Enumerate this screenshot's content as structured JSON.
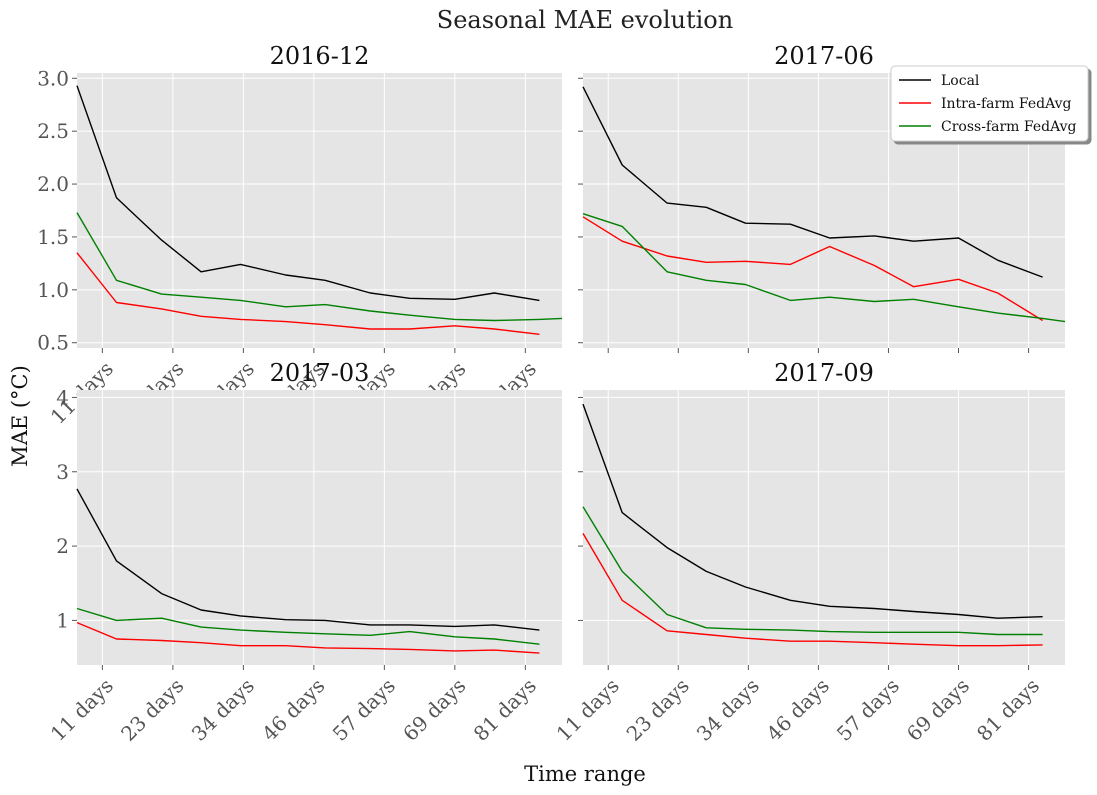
{
  "figure": {
    "title": "Seasonal MAE evolution",
    "xlabel": "Time range",
    "ylabel": "MAE (°C)"
  },
  "legend": {
    "placement": "upper-right of top-right panel",
    "entries": [
      {
        "name": "Local",
        "color": "#000000"
      },
      {
        "name": "Intra-farm FedAvg",
        "color": "#ff0000"
      },
      {
        "name": "Cross-farm FedAvg",
        "color": "#008000"
      }
    ]
  },
  "chart_data": [
    {
      "type": "line",
      "title": "2016-12",
      "xlim": [
        1,
        87
      ],
      "ylim": [
        0.45,
        3.05
      ],
      "yticks": [
        0.5,
        1.0,
        1.5,
        2.0,
        2.5,
        3.0
      ],
      "ytick_labels": [
        "0.5",
        "1.0",
        "1.5",
        "2.0",
        "2.5",
        "3.0"
      ],
      "xticks": [
        5.5,
        18,
        30.5,
        43,
        55.5,
        68,
        80.5
      ],
      "xtick_labels": [
        "11 days",
        "23 days",
        "34 days",
        "46 days",
        "57 days",
        "69 days",
        "81 days"
      ],
      "grid": true,
      "x": [
        1,
        8,
        16,
        23,
        30,
        38,
        45,
        53,
        60,
        68,
        75,
        83,
        87
      ],
      "series": [
        {
          "name": "Local",
          "color": "#000000",
          "values": [
            2.93,
            1.87,
            1.47,
            1.17,
            1.24,
            1.14,
            1.09,
            0.97,
            0.92,
            0.91,
            0.97,
            0.9,
            null
          ]
        },
        {
          "name": "Intra-farm FedAvg",
          "color": "#ff0000",
          "values": [
            1.35,
            0.88,
            0.82,
            0.75,
            0.72,
            0.7,
            0.67,
            0.63,
            0.63,
            0.66,
            0.63,
            0.58,
            null
          ]
        },
        {
          "name": "Cross-farm FedAvg",
          "color": "#008000",
          "values": [
            1.73,
            1.09,
            0.96,
            0.93,
            0.9,
            0.84,
            0.86,
            0.8,
            0.76,
            0.72,
            0.71,
            0.72,
            0.73
          ]
        }
      ]
    },
    {
      "type": "line",
      "title": "2017-06",
      "xlim": [
        1,
        87
      ],
      "ylim": [
        0.45,
        3.05
      ],
      "yticks": [
        0.5,
        1.0,
        1.5,
        2.0,
        2.5,
        3.0
      ],
      "ytick_labels": [],
      "xticks": [
        5.5,
        18,
        30.5,
        43,
        55.5,
        68,
        80.5
      ],
      "xtick_labels": [],
      "grid": true,
      "x": [
        1,
        8,
        16,
        23,
        30,
        38,
        45,
        53,
        60,
        68,
        75,
        83,
        87
      ],
      "series": [
        {
          "name": "Local",
          "color": "#000000",
          "values": [
            2.92,
            2.18,
            1.82,
            1.78,
            1.63,
            1.62,
            1.49,
            1.51,
            1.46,
            1.49,
            1.28,
            1.12,
            null
          ]
        },
        {
          "name": "Intra-farm FedAvg",
          "color": "#ff0000",
          "values": [
            1.69,
            1.46,
            1.32,
            1.26,
            1.27,
            1.24,
            1.41,
            1.23,
            1.03,
            1.1,
            0.97,
            0.71,
            null
          ]
        },
        {
          "name": "Cross-farm FedAvg",
          "color": "#008000",
          "values": [
            1.72,
            1.6,
            1.17,
            1.09,
            1.05,
            0.9,
            0.93,
            0.89,
            0.91,
            0.84,
            0.78,
            0.73,
            0.7
          ]
        }
      ]
    },
    {
      "type": "line",
      "title": "2017-03",
      "xlim": [
        1,
        87
      ],
      "ylim": [
        0.4,
        4.1
      ],
      "yticks": [
        1,
        2,
        3,
        4
      ],
      "ytick_labels": [
        "1",
        "2",
        "3",
        "4"
      ],
      "xticks": [
        5.5,
        18,
        30.5,
        43,
        55.5,
        68,
        80.5
      ],
      "xtick_labels": [
        "11 days",
        "23 days",
        "34 days",
        "46 days",
        "57 days",
        "69 days",
        "81 days"
      ],
      "grid": true,
      "x": [
        1,
        8,
        16,
        23,
        30,
        38,
        45,
        53,
        60,
        68,
        75,
        83,
        87
      ],
      "series": [
        {
          "name": "Local",
          "color": "#000000",
          "values": [
            2.77,
            1.8,
            1.36,
            1.14,
            1.06,
            1.01,
            1.0,
            0.94,
            0.94,
            0.92,
            0.94,
            0.87,
            null
          ]
        },
        {
          "name": "Intra-farm FedAvg",
          "color": "#ff0000",
          "values": [
            0.97,
            0.75,
            0.73,
            0.7,
            0.66,
            0.66,
            0.63,
            0.62,
            0.61,
            0.59,
            0.6,
            0.56,
            null
          ]
        },
        {
          "name": "Cross-farm FedAvg",
          "color": "#008000",
          "values": [
            1.16,
            1.0,
            1.03,
            0.91,
            0.87,
            0.84,
            0.82,
            0.8,
            0.85,
            0.78,
            0.75,
            0.68,
            null
          ]
        }
      ]
    },
    {
      "type": "line",
      "title": "2017-09",
      "xlim": [
        1,
        87
      ],
      "ylim": [
        0.4,
        4.1
      ],
      "yticks": [
        1,
        2,
        3,
        4
      ],
      "ytick_labels": [],
      "xticks": [
        5.5,
        18,
        30.5,
        43,
        55.5,
        68,
        80.5
      ],
      "xtick_labels": [
        "11 days",
        "23 days",
        "34 days",
        "46 days",
        "57 days",
        "69 days",
        "81 days"
      ],
      "grid": true,
      "x": [
        1,
        8,
        16,
        23,
        30,
        38,
        45,
        53,
        60,
        68,
        75,
        83,
        87
      ],
      "series": [
        {
          "name": "Local",
          "color": "#000000",
          "values": [
            3.91,
            2.45,
            1.98,
            1.66,
            1.45,
            1.27,
            1.19,
            1.16,
            1.12,
            1.08,
            1.03,
            1.05,
            null
          ]
        },
        {
          "name": "Intra-farm FedAvg",
          "color": "#ff0000",
          "values": [
            2.17,
            1.27,
            0.86,
            0.81,
            0.76,
            0.72,
            0.72,
            0.7,
            0.68,
            0.66,
            0.66,
            0.67,
            null
          ]
        },
        {
          "name": "Cross-farm FedAvg",
          "color": "#008000",
          "values": [
            2.53,
            1.66,
            1.08,
            0.9,
            0.88,
            0.87,
            0.85,
            0.84,
            0.84,
            0.84,
            0.81,
            0.81,
            null
          ]
        }
      ]
    }
  ]
}
